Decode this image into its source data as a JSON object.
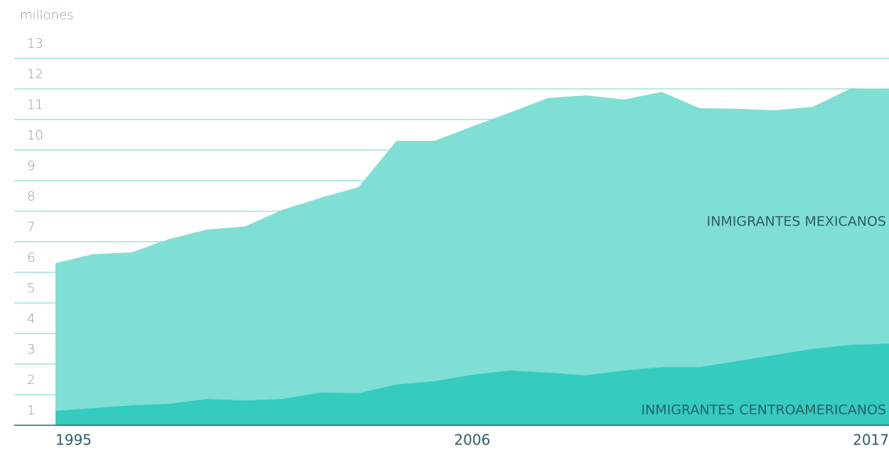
{
  "chart_data": {
    "type": "area",
    "y_axis_label": "millones",
    "x": [
      1995,
      1996,
      1997,
      1998,
      1999,
      2000,
      2001,
      2002,
      2003,
      2004,
      2005,
      2006,
      2007,
      2008,
      2009,
      2010,
      2011,
      2012,
      2013,
      2014,
      2015,
      2016,
      2017
    ],
    "series": [
      {
        "name": "INMIGRANTES MEXICANOS",
        "color": "#7fdfd4",
        "values": [
          6.3,
          6.6,
          6.65,
          7.09,
          7.4,
          7.5,
          8.05,
          8.44,
          8.79,
          10.3,
          10.3,
          10.77,
          11.23,
          11.7,
          11.79,
          11.65,
          11.9,
          11.37,
          11.35,
          11.3,
          11.42,
          12.02,
          12.0
        ]
      },
      {
        "name": "INMIGRANTES CENTROAMERICANOS",
        "color": "#35cbbe",
        "values": [
          1.47,
          1.56,
          1.65,
          1.7,
          1.86,
          1.81,
          1.86,
          2.07,
          2.05,
          2.33,
          2.44,
          2.65,
          2.79,
          2.72,
          2.63,
          2.79,
          2.9,
          2.9,
          3.1,
          3.3,
          3.5,
          3.63,
          3.67
        ]
      }
    ],
    "xlim": [
      1995,
      2017
    ],
    "xticks": [
      1995,
      2006,
      2017
    ],
    "ylim": [
      1,
      13
    ],
    "yticks": [
      1,
      2,
      3,
      4,
      5,
      6,
      7,
      8,
      9,
      10,
      11,
      12,
      13
    ],
    "grid": true,
    "stacked": false
  }
}
